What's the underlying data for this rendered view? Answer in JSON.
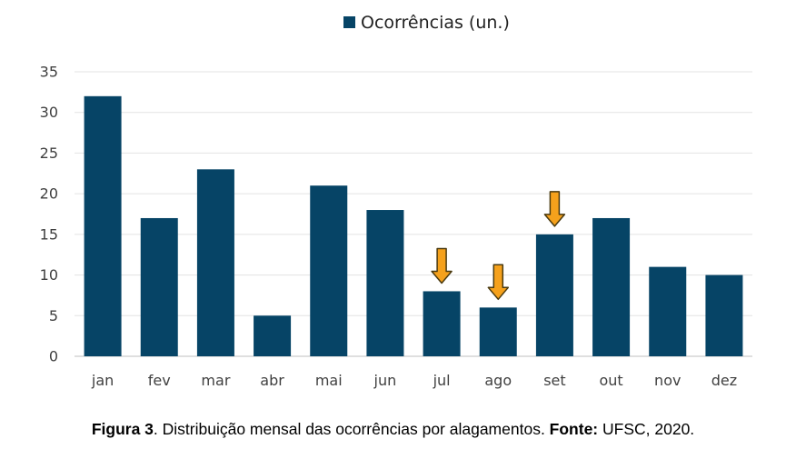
{
  "chart_data": {
    "type": "bar",
    "legend": "Ocorrências (un.)",
    "legend_position": "top-center",
    "categories": [
      "jan",
      "fev",
      "mar",
      "abr",
      "mai",
      "jun",
      "jul",
      "ago",
      "set",
      "out",
      "nov",
      "dez"
    ],
    "series": [
      {
        "name": "Ocorrências (un.)",
        "values": [
          32,
          17,
          23,
          5,
          21,
          18,
          8,
          6,
          15,
          17,
          11,
          10
        ],
        "color": "#064466"
      }
    ],
    "ylim": [
      0,
      35
    ],
    "yticks": [
      0,
      5,
      10,
      15,
      20,
      25,
      30,
      35
    ],
    "grid": true,
    "annotations": [
      {
        "type": "down-arrow",
        "category": "jul",
        "color": "#F5A11C"
      },
      {
        "type": "down-arrow",
        "category": "ago",
        "color": "#F5A11C"
      },
      {
        "type": "down-arrow",
        "category": "set",
        "color": "#F5A11C"
      }
    ]
  },
  "caption": {
    "figure_label": "Figura 3",
    "text": ". Distribuição mensal das ocorrências por alagamentos. ",
    "source_label": "Fonte:",
    "source_text": " UFSC, 2020."
  }
}
